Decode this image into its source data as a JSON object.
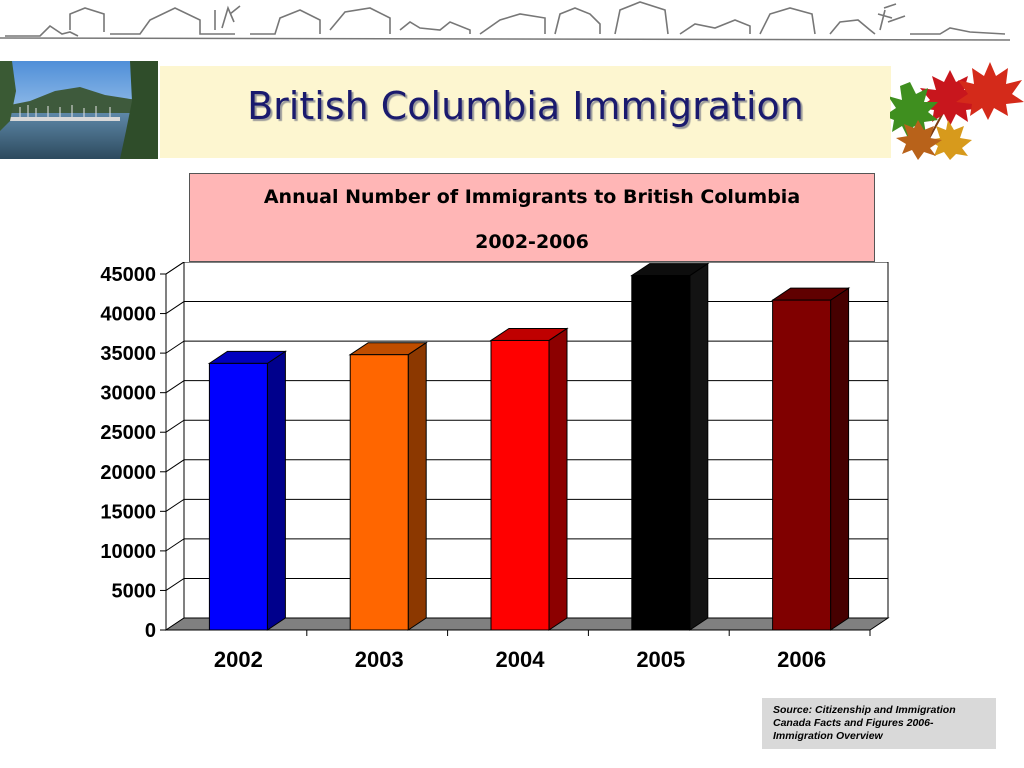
{
  "slide": {
    "title": "British Columbia Immigration",
    "caption_line1": "Annual Number of Immigrants to British Columbia",
    "caption_line2": "2002-2006",
    "source": "Source: Citizenship and Immigration Canada Facts and Figures 2006- Immigration Overview"
  },
  "chart_data": {
    "type": "bar",
    "title": "",
    "xlabel": "",
    "ylabel": "",
    "categories": [
      "2002",
      "2003",
      "2004",
      "2005",
      "2006"
    ],
    "values": [
      33700,
      34800,
      36600,
      44800,
      41700
    ],
    "colors": [
      "#0000ff",
      "#ff6600",
      "#ff0000",
      "#000000",
      "#800000"
    ],
    "ylim": [
      0,
      45000
    ],
    "yticks": [
      0,
      5000,
      10000,
      15000,
      20000,
      25000,
      30000,
      35000,
      40000,
      45000
    ],
    "grid": true,
    "legend": "none",
    "style": "3d-bar"
  }
}
